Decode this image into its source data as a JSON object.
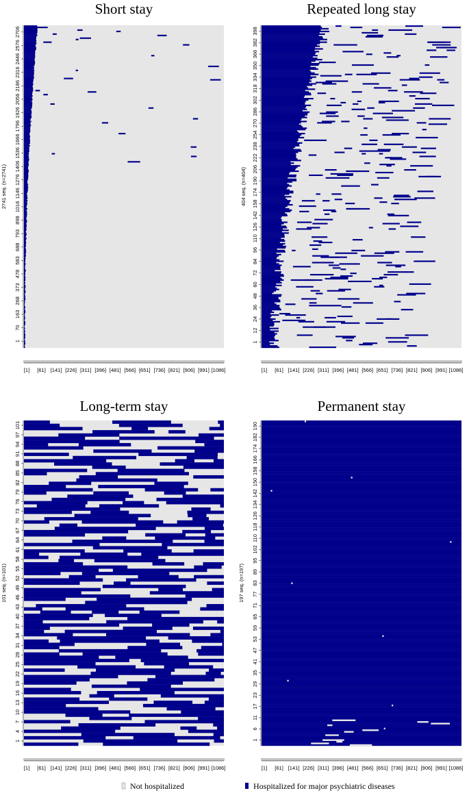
{
  "colors": {
    "not_hospitalized": "#e6e6e6",
    "hospitalized": "#00008b"
  },
  "legend": [
    {
      "label": "Not hospitalized",
      "color": "#e6e6e6"
    },
    {
      "label": "Hospitalized for major psychiatric diseases",
      "color": "#00008b"
    }
  ],
  "chart_data": [
    {
      "type": "heatmap",
      "title": "Short stay",
      "ylabel": "2741 seq. (n=2741)",
      "n_sequences": 2741,
      "x_ticks": [
        "[1]",
        "[61]",
        "[141]",
        "[226]",
        "[311]",
        "[396]",
        "[481]",
        "[566]",
        "[651]",
        "[736]",
        "[821]",
        "[906]",
        "[991]",
        "[1086]"
      ],
      "y_ticks": [
        "1",
        "70",
        "163",
        "268",
        "373",
        "478",
        "583",
        "688",
        "793",
        "898",
        "1016",
        "1146",
        "1276",
        "1406",
        "1536",
        "1666",
        "1796",
        "1926",
        "2056",
        "2186",
        "2316",
        "2446",
        "2576",
        "2706"
      ],
      "states": [
        "Not hospitalized",
        "Hospitalized for major psychiatric diseases"
      ],
      "pattern": "short-initial-blocks"
    },
    {
      "type": "heatmap",
      "title": "Repeated long stay",
      "ylabel": "404 seq. (n=404)",
      "n_sequences": 404,
      "x_ticks": [
        "[1]",
        "[61]",
        "[141]",
        "[226]",
        "[311]",
        "[396]",
        "[481]",
        "[566]",
        "[651]",
        "[736]",
        "[821]",
        "[906]",
        "[991]",
        "[1086]"
      ],
      "y_ticks": [
        "1",
        "12",
        "24",
        "36",
        "48",
        "60",
        "72",
        "84",
        "96",
        "110",
        "126",
        "142",
        "158",
        "174",
        "190",
        "206",
        "222",
        "238",
        "254",
        "270",
        "286",
        "302",
        "318",
        "334",
        "350",
        "366",
        "382",
        "398"
      ],
      "states": [
        "Not hospitalized",
        "Hospitalized for major psychiatric diseases"
      ],
      "pattern": "long-initial-with-repeats"
    },
    {
      "type": "heatmap",
      "title": "Long-term stay",
      "ylabel": "101 seq. (n=101)",
      "n_sequences": 101,
      "x_ticks": [
        "[1]",
        "[61]",
        "[141]",
        "[226]",
        "[311]",
        "[396]",
        "[481]",
        "[566]",
        "[651]",
        "[736]",
        "[821]",
        "[906]",
        "[991]",
        "[1086]"
      ],
      "y_ticks": [
        "1",
        "4",
        "7",
        "10",
        "13",
        "16",
        "19",
        "22",
        "25",
        "28",
        "31",
        "34",
        "37",
        "40",
        "43",
        "46",
        "49",
        "52",
        "55",
        "58",
        "61",
        "64",
        "67",
        "70",
        "73",
        "76",
        "79",
        "82",
        "85",
        "88",
        "91",
        "94",
        "97",
        "101"
      ],
      "states": [
        "Not hospitalized",
        "Hospitalized for major psychiatric diseases"
      ],
      "pattern": "mixed-blocks"
    },
    {
      "type": "heatmap",
      "title": "Permanent stay",
      "ylabel": "197 seq. (n=197)",
      "n_sequences": 197,
      "x_ticks": [
        "[1]",
        "[61]",
        "[141]",
        "[226]",
        "[311]",
        "[396]",
        "[481]",
        "[566]",
        "[651]",
        "[736]",
        "[821]",
        "[906]",
        "[991]",
        "[1086]"
      ],
      "y_ticks": [
        "1",
        "6",
        "11",
        "17",
        "23",
        "29",
        "35",
        "41",
        "47",
        "53",
        "59",
        "65",
        "71",
        "77",
        "83",
        "89",
        "95",
        "102",
        "110",
        "118",
        "126",
        "134",
        "142",
        "150",
        "158",
        "166",
        "174",
        "182",
        "190"
      ],
      "states": [
        "Not hospitalized",
        "Hospitalized for major psychiatric diseases"
      ],
      "pattern": "almost-always-hospitalized"
    }
  ]
}
